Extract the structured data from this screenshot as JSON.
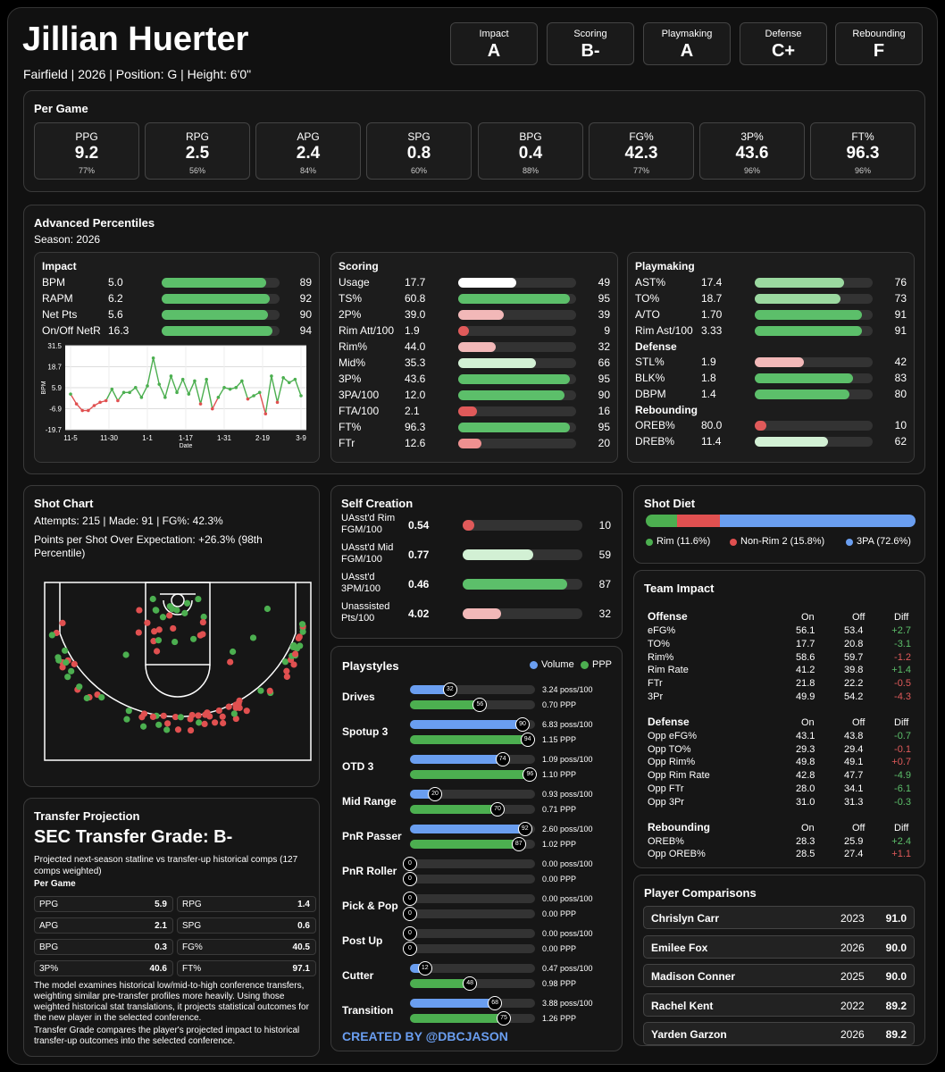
{
  "player": {
    "name": "Jillian Huerter",
    "info": "Fairfield | 2026 | Position: G | Height: 6'0\""
  },
  "grades": [
    {
      "label": "Impact",
      "value": "A"
    },
    {
      "label": "Scoring",
      "value": "B-"
    },
    {
      "label": "Playmaking",
      "value": "A"
    },
    {
      "label": "Defense",
      "value": "C+"
    },
    {
      "label": "Rebounding",
      "value": "F"
    }
  ],
  "per_game": {
    "title": "Per Game",
    "items": [
      {
        "label": "PPG",
        "value": "9.2",
        "pct": "77%"
      },
      {
        "label": "RPG",
        "value": "2.5",
        "pct": "56%"
      },
      {
        "label": "APG",
        "value": "2.4",
        "pct": "84%"
      },
      {
        "label": "SPG",
        "value": "0.8",
        "pct": "60%"
      },
      {
        "label": "BPG",
        "value": "0.4",
        "pct": "88%"
      },
      {
        "label": "FG%",
        "value": "42.3",
        "pct": "77%"
      },
      {
        "label": "3P%",
        "value": "43.6",
        "pct": "96%"
      },
      {
        "label": "FT%",
        "value": "96.3",
        "pct": "96%"
      }
    ]
  },
  "advanced": {
    "title": "Advanced Percentiles",
    "season": "Season: 2026",
    "impact": {
      "title": "Impact",
      "rows": [
        {
          "n": "BPM",
          "v": "5.0",
          "p": 89
        },
        {
          "n": "RAPM",
          "v": "6.2",
          "p": 92
        },
        {
          "n": "Net Pts",
          "v": "5.6",
          "p": 90
        },
        {
          "n": "On/Off NetR",
          "v": "16.3",
          "p": 94
        }
      ]
    },
    "scoring": {
      "title": "Scoring",
      "rows": [
        {
          "n": "Usage",
          "v": "17.7",
          "p": 49
        },
        {
          "n": "TS%",
          "v": "60.8",
          "p": 95
        },
        {
          "n": "2P%",
          "v": "39.0",
          "p": 39
        },
        {
          "n": "Rim Att/100",
          "v": "1.9",
          "p": 9
        },
        {
          "n": "Rim%",
          "v": "44.0",
          "p": 32
        },
        {
          "n": "Mid%",
          "v": "35.3",
          "p": 66
        },
        {
          "n": "3P%",
          "v": "43.6",
          "p": 95
        },
        {
          "n": "3PA/100",
          "v": "12.0",
          "p": 90
        },
        {
          "n": "FTA/100",
          "v": "2.1",
          "p": 16
        },
        {
          "n": "FT%",
          "v": "96.3",
          "p": 95
        },
        {
          "n": "FTr",
          "v": "12.6",
          "p": 20
        }
      ]
    },
    "playmaking": {
      "title": "Playmaking",
      "rows": [
        {
          "n": "AST%",
          "v": "17.4",
          "p": 76
        },
        {
          "n": "TO%",
          "v": "18.7",
          "p": 73
        },
        {
          "n": "A/TO",
          "v": "1.70",
          "p": 91
        },
        {
          "n": "Rim Ast/100",
          "v": "3.33",
          "p": 91
        }
      ]
    },
    "defense": {
      "title": "Defense",
      "rows": [
        {
          "n": "STL%",
          "v": "1.9",
          "p": 42
        },
        {
          "n": "BLK%",
          "v": "1.8",
          "p": 83
        },
        {
          "n": "DBPM",
          "v": "1.4",
          "p": 80
        }
      ]
    },
    "rebounding": {
      "title": "Rebounding",
      "rows": [
        {
          "n": "OREB%",
          "v": "80.0",
          "p": 10
        },
        {
          "n": "DREB%",
          "v": "11.4",
          "p": 62
        }
      ]
    }
  },
  "bpm_chart": {
    "ylabel": "BPM",
    "xlabel": "Date",
    "yticks": [
      "31.5",
      "18.7",
      "5.9",
      "-6.9",
      "-19.7"
    ],
    "xticks": [
      "11-5",
      "11-30",
      "1-1",
      "1-17",
      "1-31",
      "2-19",
      "3-9"
    ],
    "ymin": -19.7,
    "ymax": 31.5,
    "values": [
      2,
      -4,
      -8,
      -8,
      -5,
      -3,
      -2,
      5,
      -2,
      3,
      3,
      6,
      0,
      7,
      24,
      8,
      0,
      13,
      3,
      11,
      2,
      10,
      -4,
      11,
      -7,
      0,
      6,
      5,
      6,
      10,
      -1,
      1,
      3,
      -10,
      13,
      -3,
      12,
      9,
      11,
      1
    ]
  },
  "shot_chart": {
    "title": "Shot Chart",
    "summary": "Attempts: 215 | Made: 91 | FG%: 42.3%",
    "pppx": "Points per Shot Over Expectation: +26.3% (98th Percentile)"
  },
  "self_creation": {
    "title": "Self Creation",
    "rows": [
      {
        "n": "UAsst'd Rim FGM/100",
        "v": "0.54",
        "p": 10
      },
      {
        "n": "UAsst'd Mid FGM/100",
        "v": "0.77",
        "p": 59
      },
      {
        "n": "UAsst'd 3PM/100",
        "v": "0.46",
        "p": 87
      },
      {
        "n": "Unassisted Pts/100",
        "v": "4.02",
        "p": 32
      }
    ]
  },
  "playstyles": {
    "title": "Playstyles",
    "legend_volume": "Volume",
    "legend_ppp": "PPP",
    "credit": "CREATED BY @DBCJASON",
    "items": [
      {
        "n": "Drives",
        "vol": 32,
        "vol_txt": "3.24 poss/100",
        "ppp": 56,
        "ppp_txt": "0.70 PPP"
      },
      {
        "n": "Spotup 3",
        "vol": 90,
        "vol_txt": "6.83 poss/100",
        "ppp": 94,
        "ppp_txt": "1.15 PPP"
      },
      {
        "n": "OTD 3",
        "vol": 74,
        "vol_txt": "1.09 poss/100",
        "ppp": 96,
        "ppp_txt": "1.10 PPP"
      },
      {
        "n": "Mid Range",
        "vol": 20,
        "vol_txt": "0.93 poss/100",
        "ppp": 70,
        "ppp_txt": "0.71 PPP"
      },
      {
        "n": "PnR Passer",
        "vol": 92,
        "vol_txt": "2.60 poss/100",
        "ppp": 87,
        "ppp_txt": "1.02 PPP"
      },
      {
        "n": "PnR Roller",
        "vol": 0,
        "vol_txt": "0.00 poss/100",
        "ppp": 0,
        "ppp_txt": "0.00 PPP"
      },
      {
        "n": "Pick & Pop",
        "vol": 0,
        "vol_txt": "0.00 poss/100",
        "ppp": 0,
        "ppp_txt": "0.00 PPP"
      },
      {
        "n": "Post Up",
        "vol": 0,
        "vol_txt": "0.00 poss/100",
        "ppp": 0,
        "ppp_txt": "0.00 PPP"
      },
      {
        "n": "Cutter",
        "vol": 12,
        "vol_txt": "0.47 poss/100",
        "ppp": 48,
        "ppp_txt": "0.98 PPP"
      },
      {
        "n": "Transition",
        "vol": 68,
        "vol_txt": "3.88 poss/100",
        "ppp": 75,
        "ppp_txt": "1.26 PPP"
      }
    ]
  },
  "shot_diet": {
    "title": "Shot Diet",
    "segments": [
      {
        "label": "Rim (11.6%)",
        "value": 11.6,
        "color": "#4caf50"
      },
      {
        "label": "Non-Rim 2 (15.8%)",
        "value": 15.8,
        "color": "#e05050"
      },
      {
        "label": "3PA (72.6%)",
        "value": 72.6,
        "color": "#6a9ef0"
      }
    ]
  },
  "team_impact": {
    "title": "Team Impact",
    "col_on": "On",
    "col_off": "Off",
    "col_diff": "Diff",
    "sections": [
      {
        "title": "Offense",
        "rows": [
          {
            "n": "eFG%",
            "on": "56.1",
            "off": "53.4",
            "d": "+2.7",
            "good": true
          },
          {
            "n": "TO%",
            "on": "17.7",
            "off": "20.8",
            "d": "-3.1",
            "good": true
          },
          {
            "n": "Rim%",
            "on": "58.6",
            "off": "59.7",
            "d": "-1.2",
            "good": false
          },
          {
            "n": "Rim Rate",
            "on": "41.2",
            "off": "39.8",
            "d": "+1.4",
            "good": true
          },
          {
            "n": "FTr",
            "on": "21.8",
            "off": "22.2",
            "d": "-0.5",
            "good": false
          },
          {
            "n": "3Pr",
            "on": "49.9",
            "off": "54.2",
            "d": "-4.3",
            "good": false
          }
        ]
      },
      {
        "title": "Defense",
        "rows": [
          {
            "n": "Opp eFG%",
            "on": "43.1",
            "off": "43.8",
            "d": "-0.7",
            "good": true
          },
          {
            "n": "Opp TO%",
            "on": "29.3",
            "off": "29.4",
            "d": "-0.1",
            "good": false
          },
          {
            "n": "Opp Rim%",
            "on": "49.8",
            "off": "49.1",
            "d": "+0.7",
            "good": false
          },
          {
            "n": "Opp Rim Rate",
            "on": "42.8",
            "off": "47.7",
            "d": "-4.9",
            "good": true
          },
          {
            "n": "Opp FTr",
            "on": "28.0",
            "off": "34.1",
            "d": "-6.1",
            "good": true
          },
          {
            "n": "Opp 3Pr",
            "on": "31.0",
            "off": "31.3",
            "d": "-0.3",
            "good": true
          }
        ]
      },
      {
        "title": "Rebounding",
        "rows": [
          {
            "n": "OREB%",
            "on": "28.3",
            "off": "25.9",
            "d": "+2.4",
            "good": true
          },
          {
            "n": "Opp OREB%",
            "on": "28.5",
            "off": "27.4",
            "d": "+1.1",
            "good": false
          }
        ]
      }
    ]
  },
  "comparisons": {
    "title": "Player Comparisons",
    "items": [
      {
        "name": "Chrislyn Carr",
        "year": "2023",
        "score": "91.0"
      },
      {
        "name": "Emilee Fox",
        "year": "2026",
        "score": "90.0"
      },
      {
        "name": "Madison Conner",
        "year": "2025",
        "score": "90.0"
      },
      {
        "name": "Rachel Kent",
        "year": "2022",
        "score": "89.2"
      },
      {
        "name": "Yarden Garzon",
        "year": "2026",
        "score": "89.2"
      }
    ]
  },
  "transfer": {
    "title": "Transfer Projection",
    "grade": "SEC Transfer Grade: B-",
    "desc": "Projected next-season statline vs transfer-up historical comps (127 comps weighted)",
    "sub": "Per Game",
    "stats": [
      {
        "l": "PPG",
        "v": "5.9"
      },
      {
        "l": "RPG",
        "v": "1.4"
      },
      {
        "l": "APG",
        "v": "2.1"
      },
      {
        "l": "SPG",
        "v": "0.6"
      },
      {
        "l": "BPG",
        "v": "0.3"
      },
      {
        "l": "FG%",
        "v": "40.5"
      },
      {
        "l": "3P%",
        "v": "40.6"
      },
      {
        "l": "FT%",
        "v": "97.1"
      }
    ],
    "note1": "The model examines historical low/mid-to-high conference transfers, weighting similar pre-transfer profiles more heavily. Using those weighted historical stat translations, it projects statistical outcomes for the new player in the selected conference.",
    "note2": "Transfer Grade compares the player's projected impact to historical transfer-up outcomes into the selected conference."
  }
}
